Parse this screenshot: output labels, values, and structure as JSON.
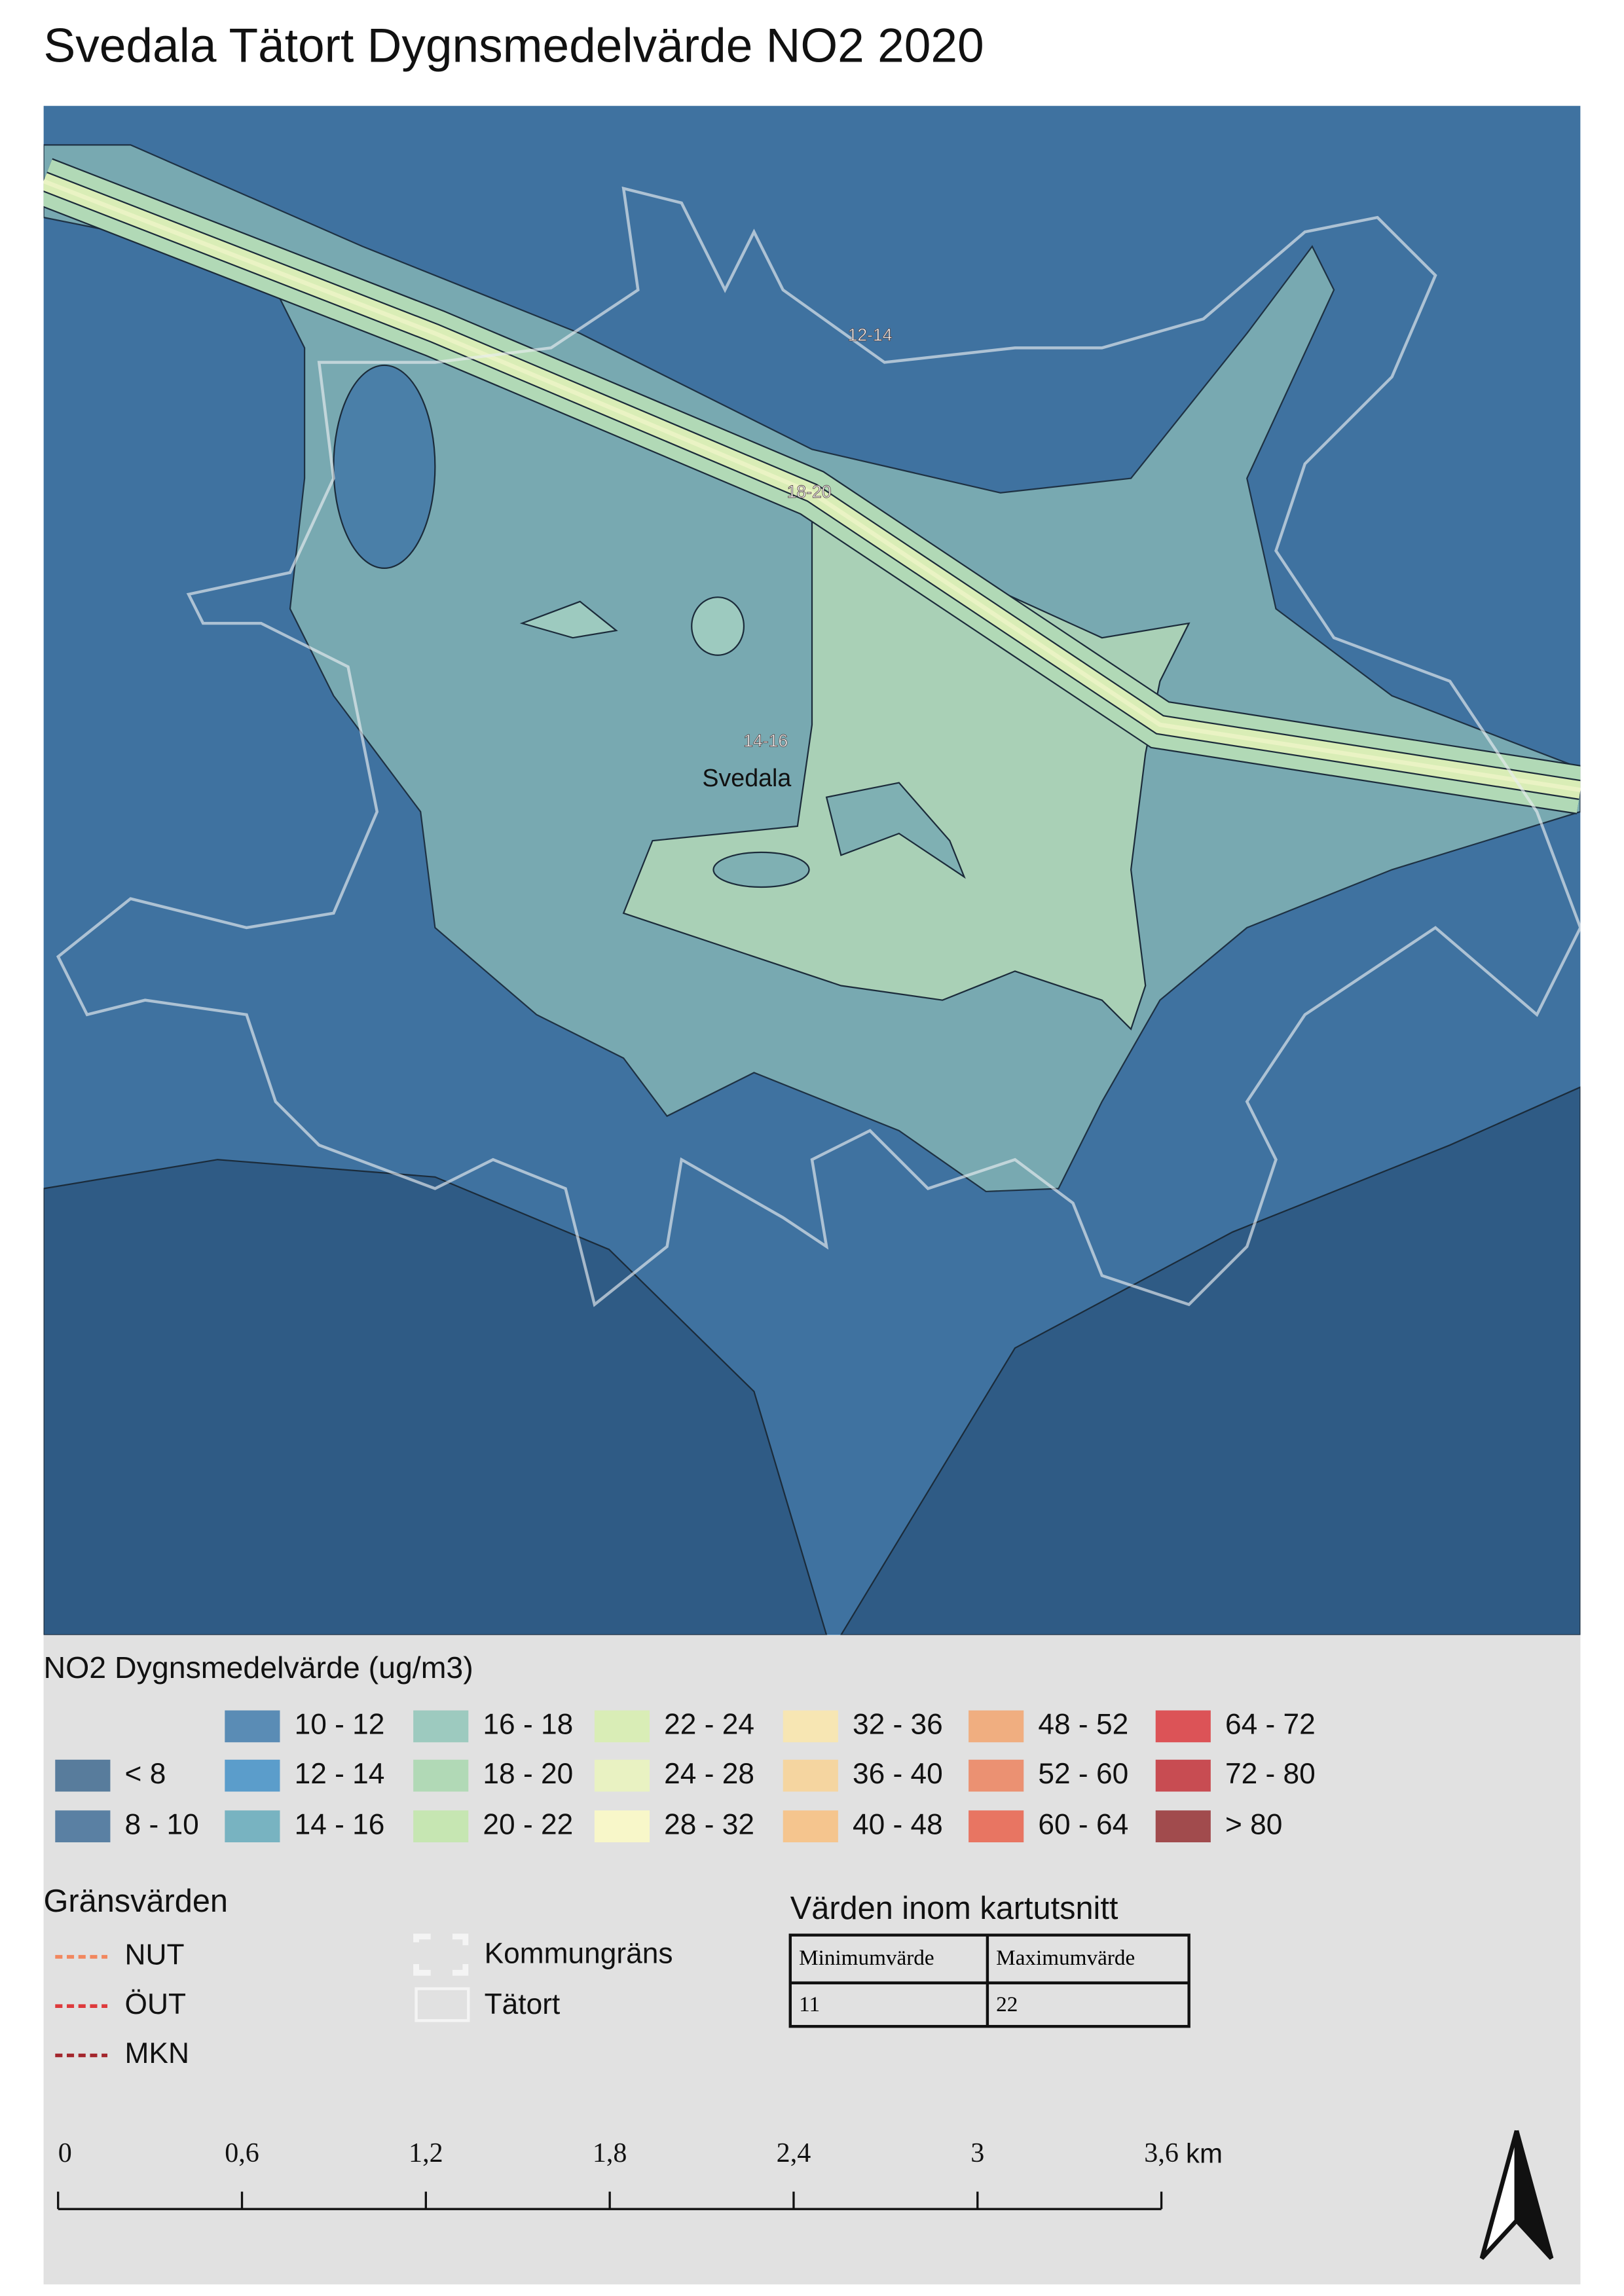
{
  "title": "Svedala Tätort Dygnsmedelvärde NO2 2020",
  "map": {
    "labels": [
      "12-14",
      "18-20",
      "14-16",
      "Svedala"
    ]
  },
  "legend": {
    "title": "NO2 Dygnsmedelvärde (ug/m3)",
    "classes": [
      {
        "label": "< 8",
        "color": "#587c9c"
      },
      {
        "label": "8 - 10",
        "color": "#5a80a3"
      },
      {
        "label": "10 - 12",
        "color": "#5a8cb5"
      },
      {
        "label": "12 - 14",
        "color": "#5b9dcb"
      },
      {
        "label": "14 - 16",
        "color": "#78b3c1"
      },
      {
        "label": "16 - 18",
        "color": "#9dcabf"
      },
      {
        "label": "18 - 20",
        "color": "#b1d9b6"
      },
      {
        "label": "20 - 22",
        "color": "#c6e6b2"
      },
      {
        "label": "22 - 24",
        "color": "#d9edb6"
      },
      {
        "label": "24 - 28",
        "color": "#e9f2c2"
      },
      {
        "label": "28 - 32",
        "color": "#f8f7c9"
      },
      {
        "label": "32 - 36",
        "color": "#f7e6b3"
      },
      {
        "label": "36 - 40",
        "color": "#f5d5a0"
      },
      {
        "label": "40 - 48",
        "color": "#f5c58e"
      },
      {
        "label": "48 - 52",
        "color": "#f0ae80"
      },
      {
        "label": "52 - 60",
        "color": "#eb9172"
      },
      {
        "label": "60 - 64",
        "color": "#e87562"
      },
      {
        "label": "64 - 72",
        "color": "#dc5357"
      },
      {
        "label": "72 - 80",
        "color": "#c84c52"
      },
      {
        "label": "> 80",
        "color": "#a14b4d"
      }
    ]
  },
  "limits": {
    "title": "Gränsvärden",
    "items": [
      {
        "label": "NUT",
        "color": "#f2875e"
      },
      {
        "label": "ÖUT",
        "color": "#de3a3c"
      },
      {
        "label": "MKN",
        "color": "#a3262d"
      }
    ]
  },
  "boundaries": {
    "items": [
      "Kommungräns",
      "Tätort"
    ]
  },
  "stats_table": {
    "title": "Värden inom kartutsnitt",
    "header": [
      "Minimumvärde",
      "Maximumvärde"
    ],
    "rows": [
      [
        11,
        22
      ]
    ]
  },
  "scale_bar": {
    "ticks": [
      0,
      {
        "value": 0.6,
        "label": "0,6"
      },
      {
        "value": 1.2,
        "label": "1,2"
      },
      {
        "value": 1.8,
        "label": "1,8"
      },
      {
        "value": 2.4,
        "label": "2,4"
      },
      3,
      {
        "value": 3.6,
        "label": "3,6"
      }
    ],
    "unit": "km"
  }
}
